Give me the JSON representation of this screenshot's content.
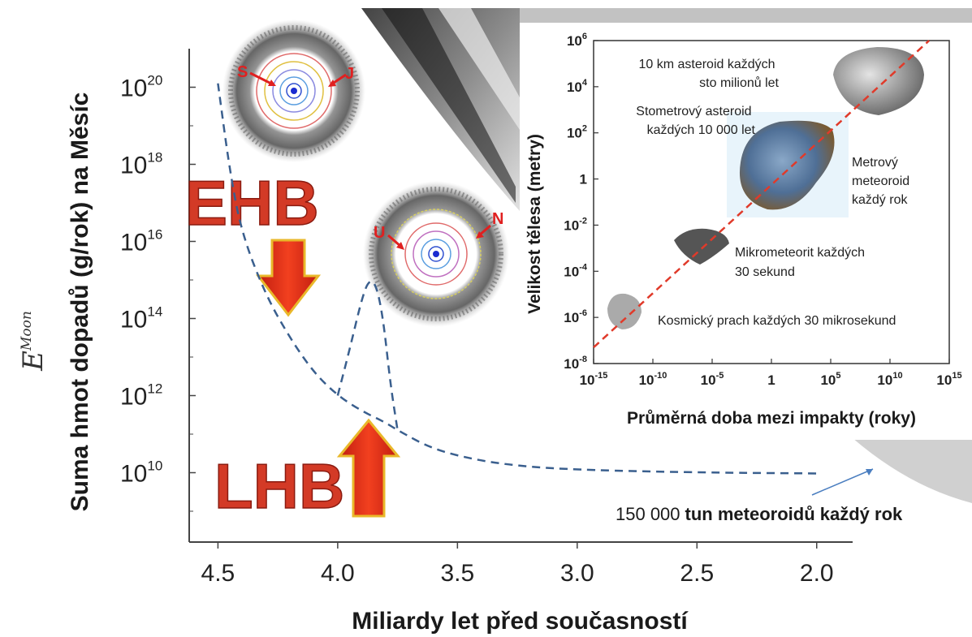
{
  "chart_data": [
    {
      "type": "line",
      "xlabel": "Miliardy let před současností",
      "ylabel": "Suma hmot dopadů (g/rok) na Měsíc",
      "y_side_symbol": "E",
      "y_side_symbol_sup": "Moon",
      "x_ticks": [
        "4.5",
        "4.0",
        "3.5",
        "3.0",
        "2.5",
        "2.0"
      ],
      "x_tick_values": [
        4.5,
        4.0,
        3.5,
        3.0,
        2.5,
        2.0
      ],
      "y_ticks": [
        {
          "base": "10",
          "exp": "20",
          "value": 20
        },
        {
          "base": "10",
          "exp": "18",
          "value": 18
        },
        {
          "base": "10",
          "exp": "16",
          "value": 16
        },
        {
          "base": "10",
          "exp": "14",
          "value": 14
        },
        {
          "base": "10",
          "exp": "12",
          "value": 12
        },
        {
          "base": "10",
          "exp": "10",
          "value": 10
        }
      ],
      "y_scale": "log",
      "xlim": [
        4.62,
        1.85
      ],
      "ylim_log10": [
        8.2,
        21.0
      ],
      "series": [
        {
          "style": "dashed",
          "color": "#3a5f8e",
          "x": [
            4.5,
            4.45,
            4.4,
            4.3,
            4.2,
            4.1,
            4.0,
            3.9,
            3.8,
            3.75,
            3.6,
            3.4,
            3.2,
            3.0,
            2.7,
            2.4,
            2.2,
            2.0
          ],
          "log10_y": [
            20.1,
            17.8,
            16.2,
            14.6,
            13.5,
            12.6,
            12.0,
            11.6,
            11.3,
            11.1,
            10.6,
            10.3,
            10.15,
            10.08,
            10.03,
            10.0,
            9.99,
            9.98
          ]
        },
        {
          "style": "dashed",
          "color": "#3a5f8e",
          "x": [
            4.0,
            3.95,
            3.9,
            3.87,
            3.84,
            3.81,
            3.78,
            3.75
          ],
          "log10_y": [
            12.0,
            13.2,
            14.5,
            15.0,
            14.9,
            14.0,
            12.3,
            11.1
          ]
        }
      ],
      "annotations": {
        "ehb": "EHB",
        "lhb": "LHB",
        "planet_labels_top": [
          "S",
          "J"
        ],
        "planet_labels_bottom": [
          "U",
          "N"
        ],
        "note": "150 000",
        "note_bold": "tun meteoroidů každý rok"
      }
    },
    {
      "type": "line",
      "xlabel": "Průměrná doba mezi impakty (roky)",
      "ylabel": "Velikost tělesa (metry)",
      "x_scale": "log",
      "y_scale": "log",
      "x_ticks": [
        {
          "base": "10",
          "exp": "-15",
          "value": -15
        },
        {
          "base": "10",
          "exp": "-10",
          "value": -10
        },
        {
          "base": "10",
          "exp": "-5",
          "value": -5
        },
        {
          "base": "1",
          "exp": "",
          "value": 0
        },
        {
          "base": "10",
          "exp": "5",
          "value": 5
        },
        {
          "base": "10",
          "exp": "10",
          "value": 10
        },
        {
          "base": "10",
          "exp": "15",
          "value": 15
        }
      ],
      "y_ticks": [
        {
          "base": "10",
          "exp": "6",
          "value": 6
        },
        {
          "base": "10",
          "exp": "4",
          "value": 4
        },
        {
          "base": "10",
          "exp": "2",
          "value": 2
        },
        {
          "base": "1",
          "exp": "",
          "value": 0
        },
        {
          "base": "10",
          "exp": "-2",
          "value": -2
        },
        {
          "base": "10",
          "exp": "-4",
          "value": -4
        },
        {
          "base": "10",
          "exp": "-6",
          "value": -6
        },
        {
          "base": "10",
          "exp": "-8",
          "value": -8
        }
      ],
      "xlim_log10": [
        -15,
        15
      ],
      "ylim_log10": [
        -8,
        6
      ],
      "series": [
        {
          "style": "dashed",
          "color": "#e03a2a",
          "log10_x": [
            -15,
            13.3
          ],
          "log10_y": [
            -7.3,
            6.0
          ]
        }
      ],
      "labels": [
        {
          "lines": [
            "10 km asteroid každých",
            "sto milionů let"
          ]
        },
        {
          "lines": [
            "Stometrový asteroid",
            "každých 10 000 let"
          ]
        },
        {
          "lines": [
            "Metrový",
            "meteoroid",
            "každý rok"
          ]
        },
        {
          "lines": [
            "Mikrometeorit každých",
            "30 sekund"
          ]
        },
        {
          "lines": [
            "Kosmický prach každých 30 mikrosekund"
          ]
        }
      ]
    }
  ],
  "colors": {
    "main_curve": "#3a5f8e",
    "inset_line": "#e03a2a",
    "label_red": "#d33a26",
    "arrow_red": "#e8321a",
    "arrow_gold": "#e9b82a"
  }
}
